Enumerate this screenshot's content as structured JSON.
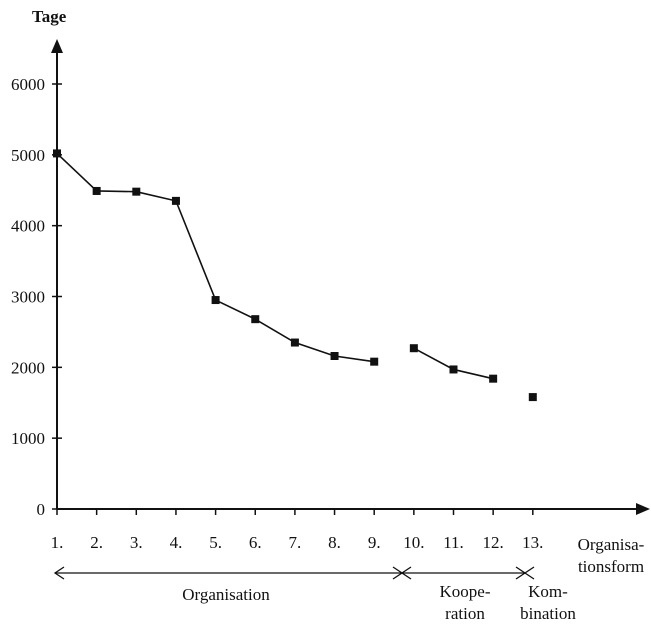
{
  "chart_data": {
    "type": "line",
    "ylabel": "Tage",
    "xlabel": [
      "Organisa-",
      "tionsform"
    ],
    "ylim": [
      0,
      6500
    ],
    "yticks": [
      0,
      1000,
      2000,
      3000,
      4000,
      5000,
      6000
    ],
    "categories": [
      "1.",
      "2.",
      "3.",
      "4.",
      "5.",
      "6.",
      "7.",
      "8.",
      "9.",
      "10.",
      "11.",
      "12.",
      "13."
    ],
    "segments": [
      {
        "points": [
          [
            1,
            5020
          ],
          [
            2,
            4490
          ],
          [
            3,
            4480
          ],
          [
            4,
            4350
          ],
          [
            5,
            2950
          ],
          [
            6,
            2680
          ],
          [
            7,
            2350
          ],
          [
            8,
            2160
          ],
          [
            9,
            2080
          ]
        ]
      },
      {
        "points": [
          [
            10,
            2270
          ],
          [
            11,
            1970
          ],
          [
            12,
            1840
          ]
        ]
      },
      {
        "points": [
          [
            13,
            1580
          ]
        ]
      }
    ],
    "groups": [
      {
        "label": [
          "Organisation"
        ],
        "from": 1,
        "to": 9
      },
      {
        "label": [
          "Koope-",
          "ration"
        ],
        "from": 10,
        "to": 12
      },
      {
        "label": [
          "Kom-",
          "bination"
        ],
        "from": 13,
        "to": 13
      }
    ],
    "grid": false,
    "legend": "none",
    "colors": {
      "line": "#111111",
      "marker": "#111111"
    }
  }
}
